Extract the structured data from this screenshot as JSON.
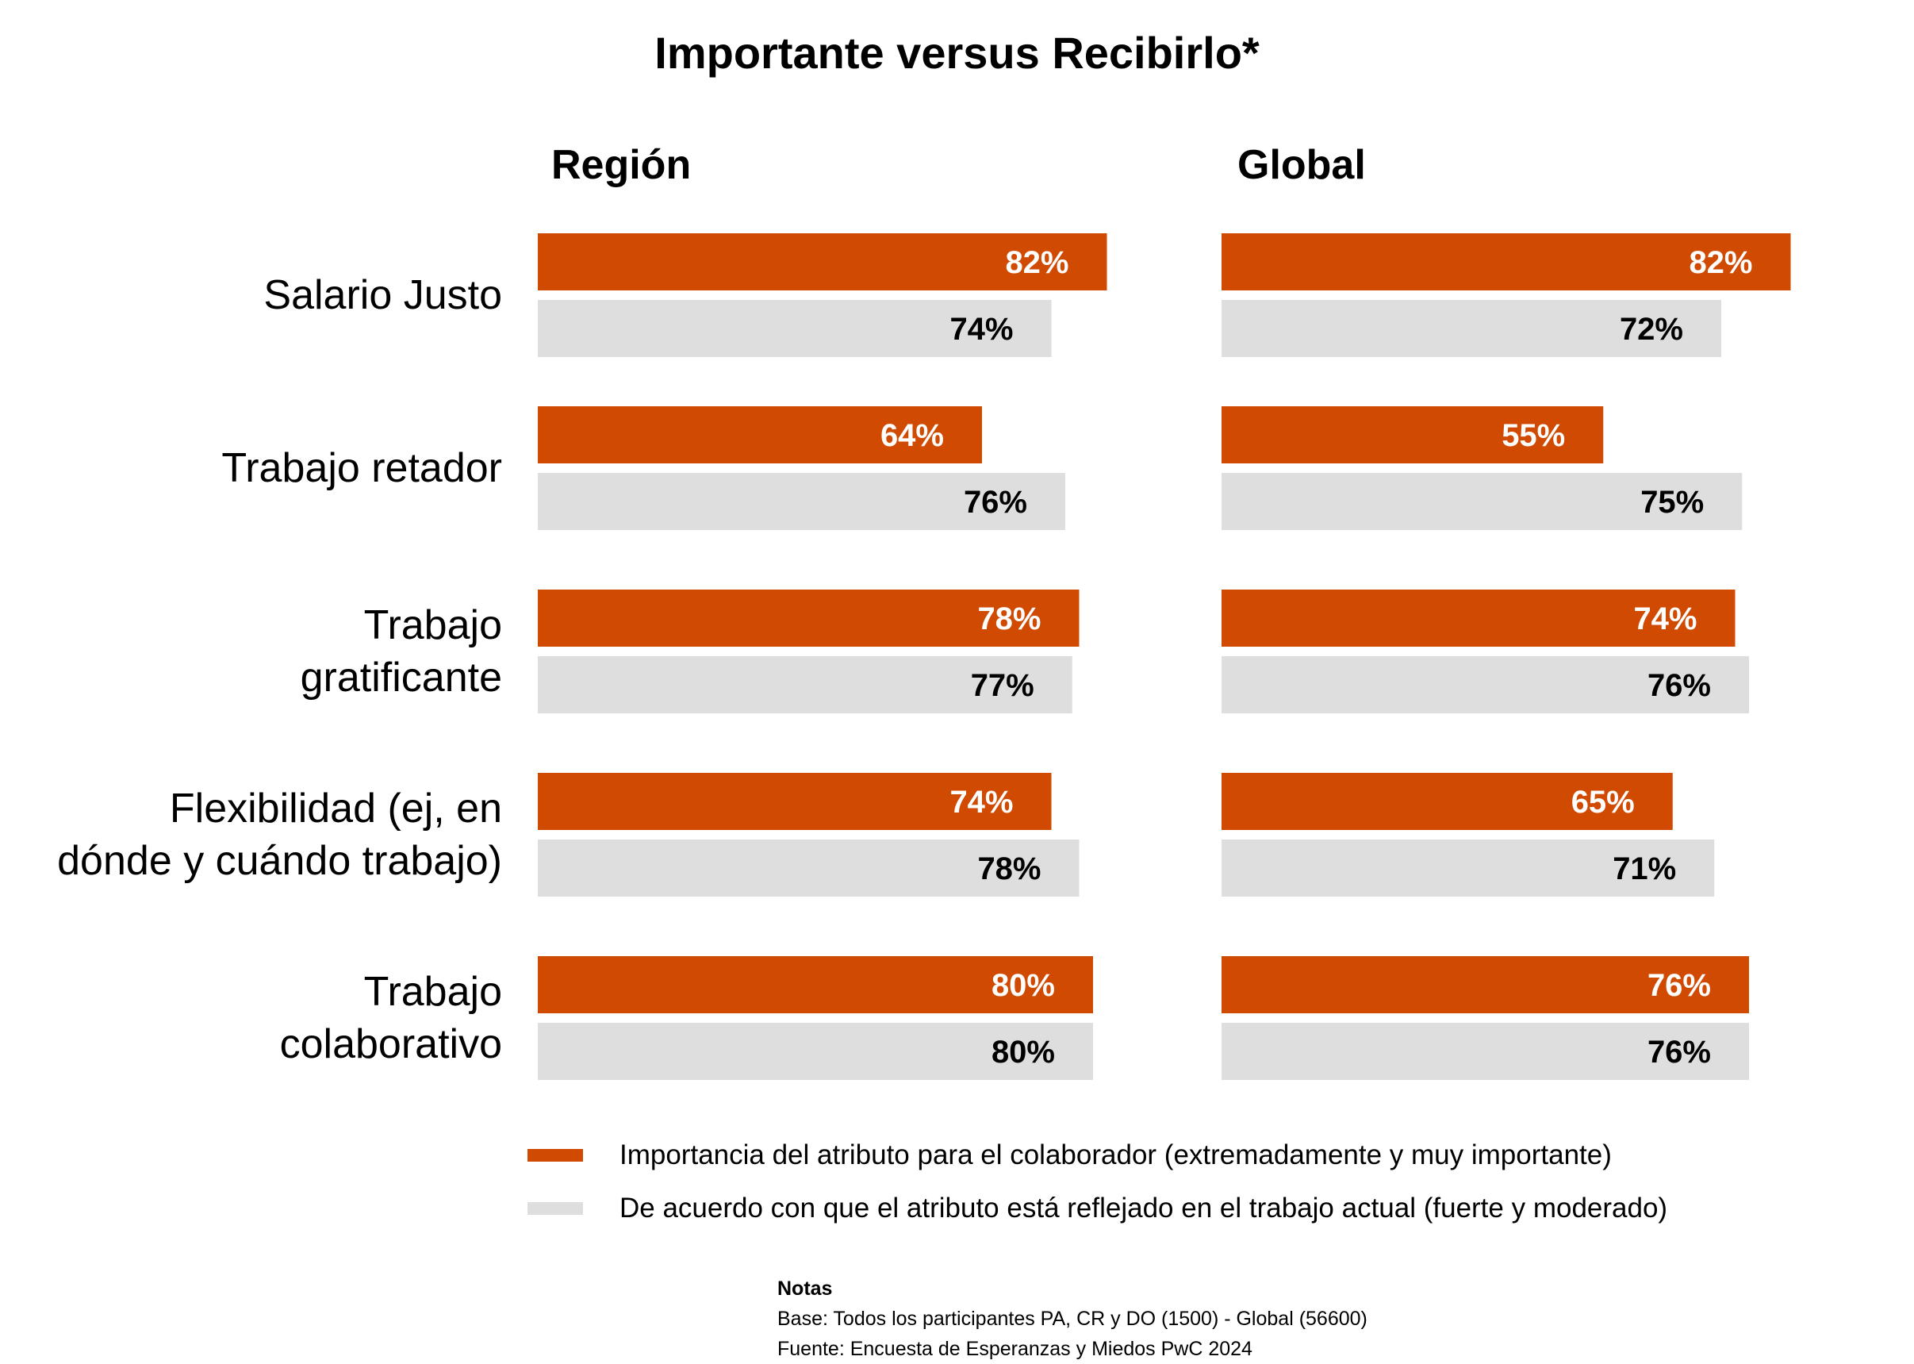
{
  "colors": {
    "importance": "#D04A02",
    "reflected": "#DEDEDE",
    "label_on_orange": "#FFFFFF",
    "label_on_gray": "#000000"
  },
  "chart_data": {
    "type": "bar",
    "orientation": "horizontal",
    "title": "Importante versus Recibirlo*",
    "categories": [
      "Salario Justo",
      "Trabajo retador",
      "Trabajo gratificante",
      "Flexibilidad (ej, en dónde y cuándo trabajo)",
      "Trabajo colaborativo"
    ],
    "category_lines": [
      [
        "Salario Justo"
      ],
      [
        "Trabajo retador"
      ],
      [
        "Trabajo",
        "gratificante"
      ],
      [
        "Flexibilidad (ej, en",
        "dónde y cuándo trabajo)"
      ],
      [
        "Trabajo",
        "colaborativo"
      ]
    ],
    "value_format": "percent",
    "xlim": [
      0,
      100
    ],
    "panels": [
      {
        "title": "Región",
        "series": [
          {
            "name": "Importancia del atributo para el colaborador (extremadamente y muy importante)",
            "values": [
              82,
              64,
              78,
              74,
              80
            ]
          },
          {
            "name": "De acuerdo con que el atributo está reflejado en el trabajo actual (fuerte y moderado)",
            "values": [
              74,
              76,
              77,
              78,
              80
            ]
          }
        ]
      },
      {
        "title": "Global",
        "series": [
          {
            "name": "Importancia del atributo para el colaborador (extremadamente y muy importante)",
            "values": [
              82,
              55,
              74,
              65,
              76
            ]
          },
          {
            "name": "De acuerdo con que el atributo está reflejado en el trabajo actual (fuerte y moderado)",
            "values": [
              72,
              75,
              76,
              71,
              76
            ]
          }
        ]
      }
    ],
    "legend": {
      "position": "bottom",
      "items": [
        "Importancia del atributo para el colaborador (extremadamente y muy importante)",
        "De acuerdo con que el atributo está reflejado en el trabajo actual (fuerte y moderado)"
      ]
    },
    "grid": false
  },
  "notes": {
    "heading": "Notas",
    "base": "Base: Todos los participantes PA, CR y DO (1500) - Global (56600)",
    "source": "Fuente: Encuesta de Esperanzas y Miedos PwC 2024"
  }
}
